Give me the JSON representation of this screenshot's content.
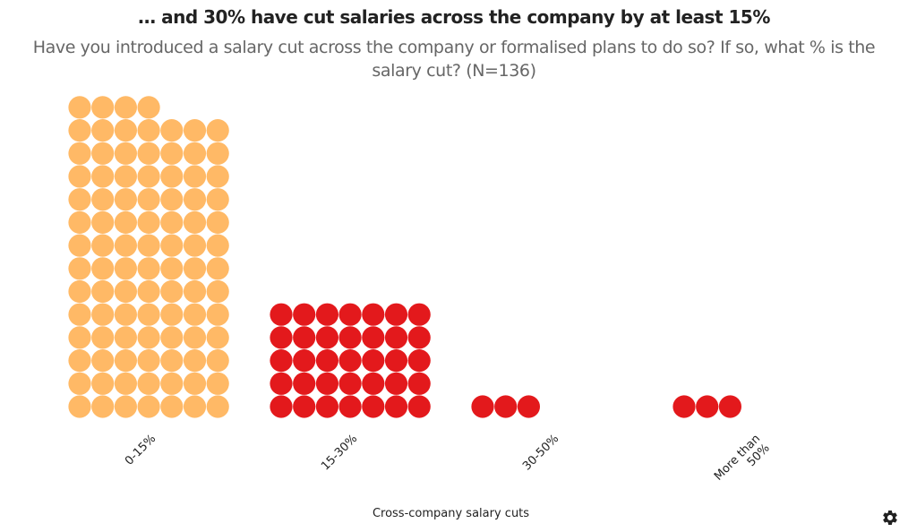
{
  "title": "… and 30% have cut salaries across the company by at least 15%",
  "subtitle": "Have you introduced a salary cut across the company or formalised plans to do so?  If so, what % is the salary cut? (N=136)",
  "xlabel": "Cross-company salary cuts",
  "settings_icon": "gear-icon",
  "chart_data": {
    "type": "waffle",
    "title": "… and 30% have cut salaries across the company by at least 15%",
    "subtitle": "Have you introduced a salary cut across the company or formalised plans to do so?  If so, what % is the salary cut? (N=136)",
    "xlabel": "Cross-company salary cuts",
    "unit": "respondents (one dot = one respondent)",
    "total_n": 136,
    "categories": [
      "0-15%",
      "15-30%",
      "30-50%",
      "More than 50%"
    ],
    "category_label_lines": [
      [
        "0-15%"
      ],
      [
        "15-30%"
      ],
      [
        "30-50%"
      ],
      [
        "More than",
        "50%"
      ]
    ],
    "values": [
      95,
      35,
      3,
      3
    ],
    "colors": [
      "#FFB966",
      "#E3191C",
      "#E3191C",
      "#E3191C"
    ]
  }
}
